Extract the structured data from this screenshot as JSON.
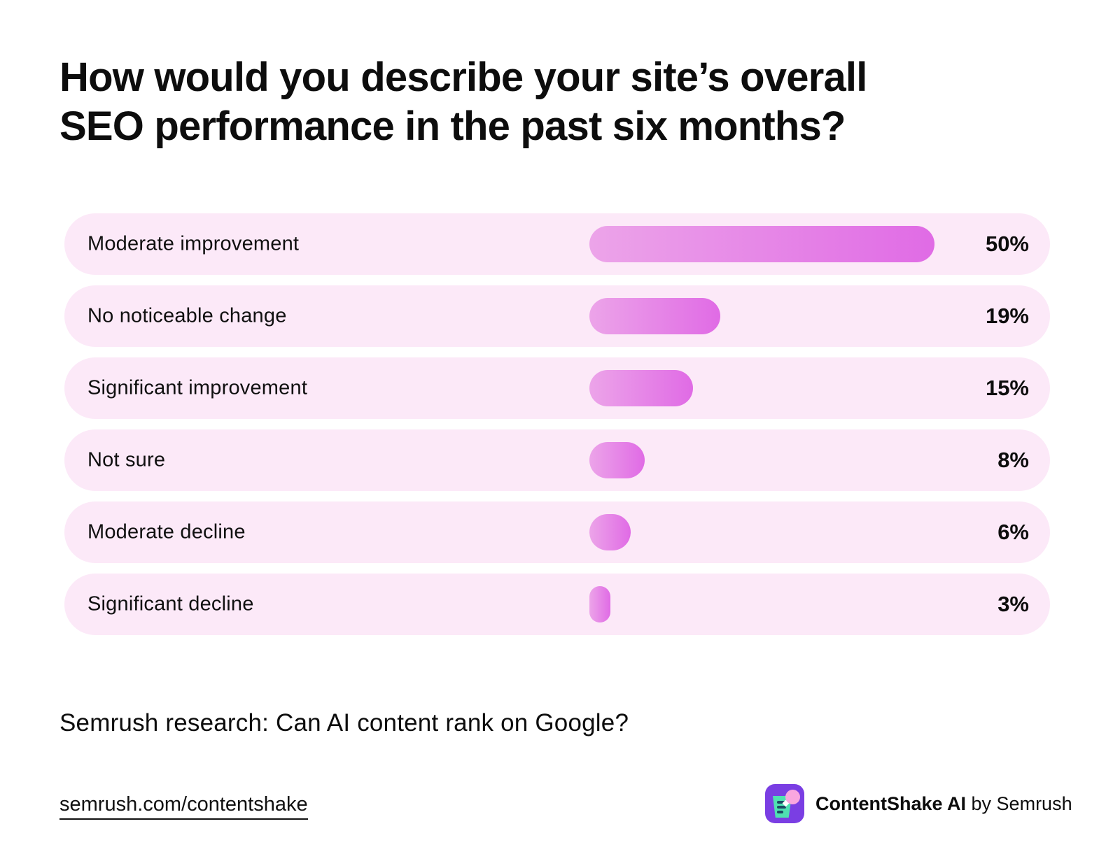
{
  "chart_data": {
    "type": "bar",
    "orientation": "horizontal",
    "title": "How would you describe your site’s overall SEO performance in the past six months?",
    "title_lines": [
      "How would you describe your site’s overall",
      "SEO performance in the past six months?"
    ],
    "categories": [
      "Moderate improvement",
      "No noticeable change",
      "Significant improvement",
      "Not sure",
      "Moderate decline",
      "Significant decline"
    ],
    "values": [
      50,
      19,
      15,
      8,
      6,
      3
    ],
    "value_labels": [
      "50%",
      "19%",
      "15%",
      "8%",
      "6%",
      "3%"
    ],
    "xlim": [
      0,
      50
    ],
    "grid": false,
    "legend": false,
    "colors": {
      "row_background": "#fce9f8",
      "bar_gradient_start": "#eca4e9",
      "bar_gradient_end": "#e06be5",
      "text": "#0d0d0d"
    }
  },
  "subtitle": "Semrush research: Can AI content rank on Google?",
  "footer": {
    "link": "semrush.com/contentshake",
    "brand_bold": "ContentShake AI",
    "brand_rest": " by Semrush",
    "logo": {
      "icon": "contentshake-shake-glass-icon",
      "background": "#7a3ee3",
      "cup": "#4fe1b1",
      "lines": "#1c4a63",
      "bubble": "#f9a6df"
    }
  }
}
